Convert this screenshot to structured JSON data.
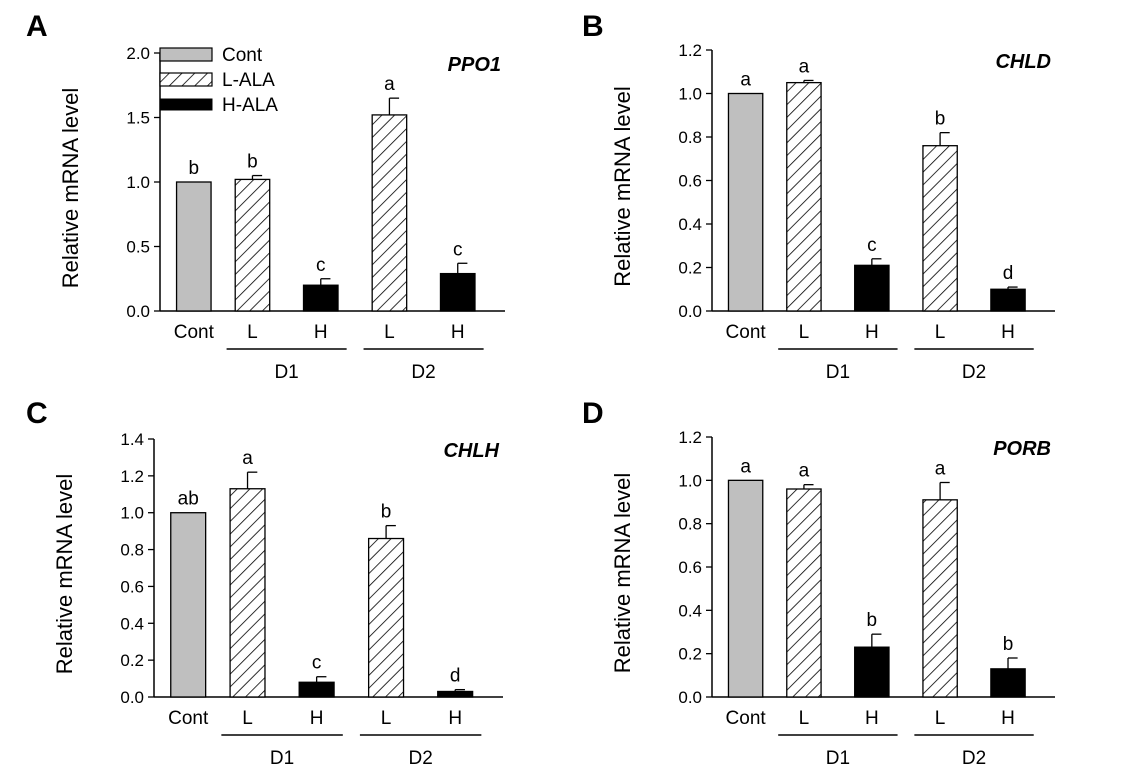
{
  "figure": {
    "colors": {
      "cont": "#bfbfbf",
      "high": "#000000",
      "hatch": "#000000",
      "axis": "#000000"
    }
  },
  "legend": {
    "entries": [
      {
        "label": "Cont",
        "style": "cont"
      },
      {
        "label": "L-ALA",
        "style": "hatch"
      },
      {
        "label": "H-ALA",
        "style": "high"
      }
    ]
  },
  "chart_data": [
    {
      "type": "bar",
      "panel": "A",
      "title": "PPO1",
      "ylabel": "Relative mRNA level",
      "ylim": [
        0,
        2.0
      ],
      "yticks": [
        "0.0",
        "0.5",
        "1.0",
        "1.5",
        "2.0"
      ],
      "ytick_values": [
        0,
        0.5,
        1.0,
        1.5,
        2.0
      ],
      "categories": [
        "Cont",
        "L",
        "H",
        "L",
        "H"
      ],
      "groups": [
        "D1",
        "D2"
      ],
      "values": [
        1.0,
        1.02,
        0.2,
        1.52,
        0.29
      ],
      "errors": [
        0.0,
        0.03,
        0.05,
        0.13,
        0.08
      ],
      "letters": [
        "b",
        "b",
        "c",
        "a",
        "c"
      ],
      "styles": [
        "cont",
        "hatch",
        "high",
        "hatch",
        "high"
      ]
    },
    {
      "type": "bar",
      "panel": "B",
      "title": "CHLD",
      "ylabel": "Relative mRNA level",
      "ylim": [
        0,
        1.2
      ],
      "yticks": [
        "0.0",
        "0.2",
        "0.4",
        "0.6",
        "0.8",
        "1.0",
        "1.2"
      ],
      "ytick_values": [
        0,
        0.2,
        0.4,
        0.6,
        0.8,
        1.0,
        1.2
      ],
      "categories": [
        "Cont",
        "L",
        "H",
        "L",
        "H"
      ],
      "groups": [
        "D1",
        "D2"
      ],
      "values": [
        1.0,
        1.05,
        0.21,
        0.76,
        0.1
      ],
      "errors": [
        0.0,
        0.01,
        0.03,
        0.06,
        0.01
      ],
      "letters": [
        "a",
        "a",
        "c",
        "b",
        "d"
      ],
      "styles": [
        "cont",
        "hatch",
        "high",
        "hatch",
        "high"
      ]
    },
    {
      "type": "bar",
      "panel": "C",
      "title": "CHLH",
      "ylabel": "Relative mRNA level",
      "ylim": [
        0,
        1.4
      ],
      "yticks": [
        "0.0",
        "0.2",
        "0.4",
        "0.6",
        "0.8",
        "1.0",
        "1.2",
        "1.4"
      ],
      "ytick_values": [
        0,
        0.2,
        0.4,
        0.6,
        0.8,
        1.0,
        1.2,
        1.4
      ],
      "categories": [
        "Cont",
        "L",
        "H",
        "L",
        "H"
      ],
      "groups": [
        "D1",
        "D2"
      ],
      "values": [
        1.0,
        1.13,
        0.08,
        0.86,
        0.03
      ],
      "errors": [
        0.0,
        0.09,
        0.03,
        0.07,
        0.01
      ],
      "letters": [
        "ab",
        "a",
        "c",
        "b",
        "d"
      ],
      "styles": [
        "cont",
        "hatch",
        "high",
        "hatch",
        "high"
      ]
    },
    {
      "type": "bar",
      "panel": "D",
      "title": "PORB",
      "ylabel": "Relative mRNA level",
      "ylim": [
        0,
        1.2
      ],
      "yticks": [
        "0.0",
        "0.2",
        "0.4",
        "0.6",
        "0.8",
        "1.0",
        "1.2"
      ],
      "ytick_values": [
        0,
        0.2,
        0.4,
        0.6,
        0.8,
        1.0,
        1.2
      ],
      "categories": [
        "Cont",
        "L",
        "H",
        "L",
        "H"
      ],
      "groups": [
        "D1",
        "D2"
      ],
      "values": [
        1.0,
        0.96,
        0.23,
        0.91,
        0.13
      ],
      "errors": [
        0.0,
        0.02,
        0.06,
        0.08,
        0.05
      ],
      "letters": [
        "a",
        "a",
        "b",
        "a",
        "b"
      ],
      "styles": [
        "cont",
        "hatch",
        "high",
        "hatch",
        "high"
      ]
    }
  ]
}
